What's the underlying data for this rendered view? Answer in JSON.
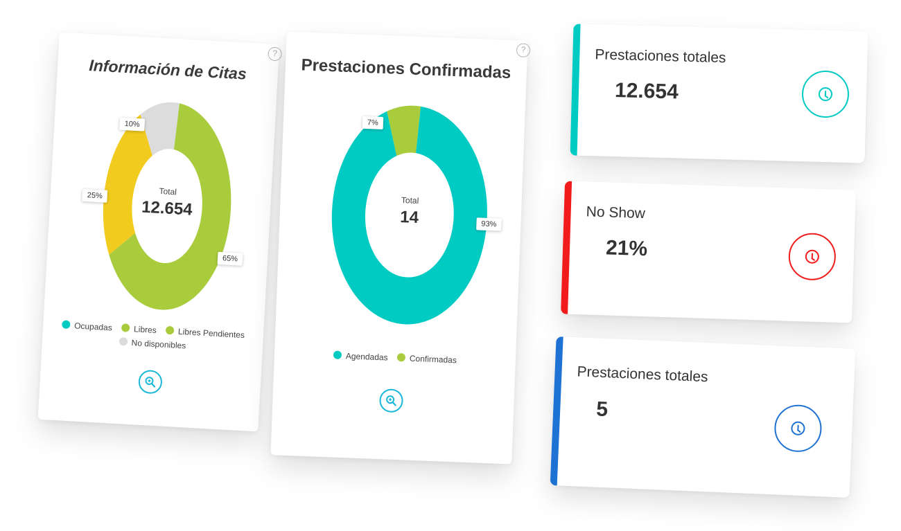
{
  "colors": {
    "teal": "#00cbc3",
    "green": "#a8cc3c",
    "yellow": "#f1cb1e",
    "grey": "#dcdcdc",
    "red": "#f21b1b",
    "blue": "#1e72d3",
    "cyan_accent": "#19b7d8"
  },
  "citas": {
    "title": "Información de Citas",
    "help": "?",
    "center_label": "Total",
    "center_value": "12.654",
    "tags": {
      "p10": "10%",
      "p25": "25%",
      "p65": "65%"
    },
    "legend": [
      "Ocupadas",
      "Libres",
      "Libres Pendientes",
      "No disponibles"
    ],
    "zoom_icon": "zoom-in-icon"
  },
  "prestaciones": {
    "title": "Prestaciones Confirmadas",
    "help": "?",
    "center_label": "Total",
    "center_value": "14",
    "tags": {
      "p7": "7%",
      "p93": "93%"
    },
    "legend": [
      "Agendadas",
      "Confirmadas"
    ],
    "zoom_icon": "zoom-in-icon"
  },
  "stats": [
    {
      "label": "Prestaciones totales",
      "value": "12.654",
      "color": "#00cbc3",
      "icon": "clock-icon"
    },
    {
      "label": "No Show",
      "value": "21%",
      "color": "#f21b1b",
      "icon": "clock-icon"
    },
    {
      "label": "Prestaciones totales",
      "value": "5",
      "color": "#1e72d3",
      "icon": "clock-icon"
    }
  ],
  "chart_data": [
    {
      "type": "pie",
      "title": "Información de Citas",
      "categories": [
        "Ocupadas",
        "Libres",
        "Libres Pendientes",
        "No disponibles"
      ],
      "values": [
        25,
        65,
        0,
        10
      ],
      "colors": [
        "#f1cb1e",
        "#a8cc3c",
        "#a8cc3c",
        "#dcdcdc"
      ],
      "total": "12.654"
    },
    {
      "type": "pie",
      "title": "Prestaciones Confirmadas",
      "categories": [
        "Agendadas",
        "Confirmadas"
      ],
      "values": [
        93,
        7
      ],
      "colors": [
        "#00cbc3",
        "#a8cc3c"
      ],
      "total": "14"
    }
  ]
}
